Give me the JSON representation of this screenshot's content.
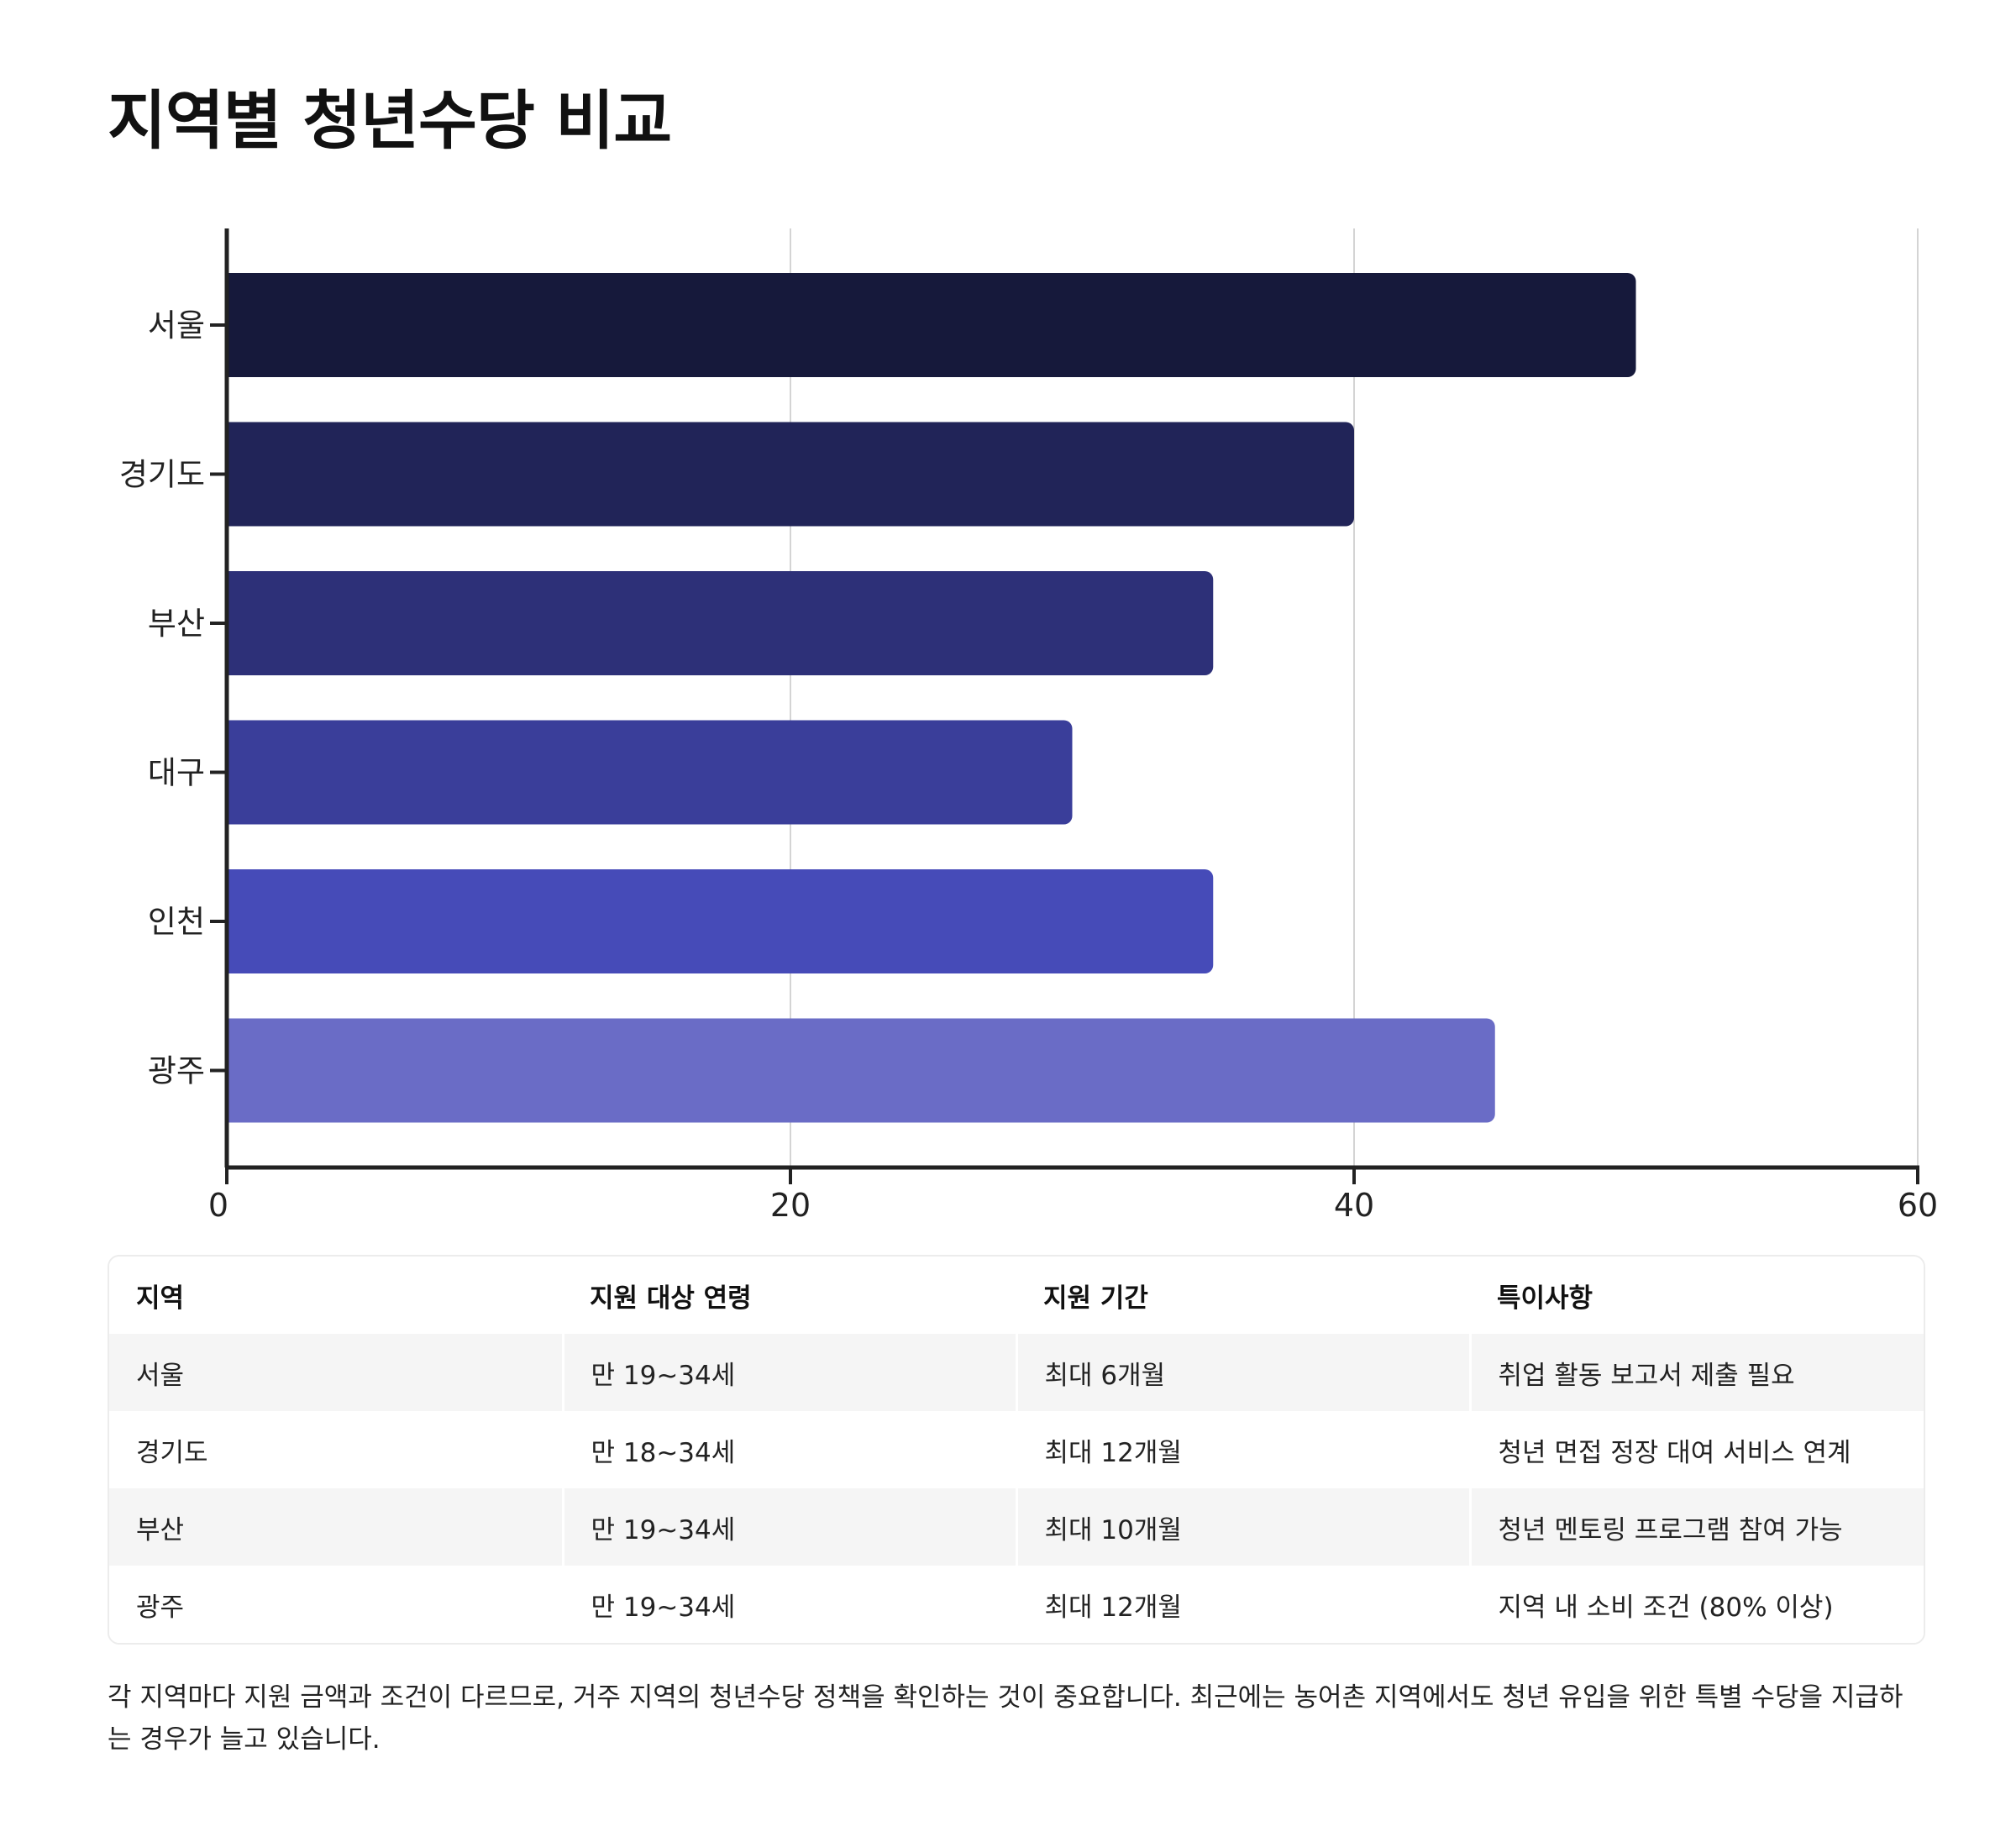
{
  "chart_data": {
    "type": "bar",
    "orientation": "horizontal",
    "title": "지역별 청년수당 비교",
    "categories": [
      "서울",
      "경기도",
      "부산",
      "대구",
      "인천",
      "광주"
    ],
    "values": [
      50,
      40,
      35,
      30,
      35,
      45
    ],
    "colors": [
      "#16193b",
      "#212458",
      "#2d3078",
      "#3a3e9a",
      "#464bb8",
      "#6a6cc6"
    ],
    "xlim": [
      0,
      60
    ],
    "xticks": [
      "0",
      "20",
      "40",
      "60"
    ],
    "grid": true,
    "legend": "none"
  },
  "table": {
    "headers": [
      "지역",
      "지원 대상 연령",
      "지원 기간",
      "특이사항"
    ],
    "rows": [
      [
        "서울",
        "만 19~34세",
        "최대 6개월",
        "취업 활동 보고서 제출 필요"
      ],
      [
        "경기도",
        "만 18~34세",
        "최대 12개월",
        "청년 면접 정장 대여 서비스 연계"
      ],
      [
        "부산",
        "만 19~34세",
        "최대 10개월",
        "청년 멘토링 프로그램 참여 가능"
      ],
      [
        "광주",
        "만 19~34세",
        "최대 12개월",
        "지역 내 소비 조건 (80% 이상)"
      ]
    ]
  },
  "note": "각 지역마다 지원 금액과 조건이 다르므로, 거주 지역의 청년수당 정책을 확인하는 것이 중요합니다. 최근에는 농어촌 지역에서도 청년 유입을 위한 특별 수당을 지급하는 경우가 늘고 있습니다."
}
